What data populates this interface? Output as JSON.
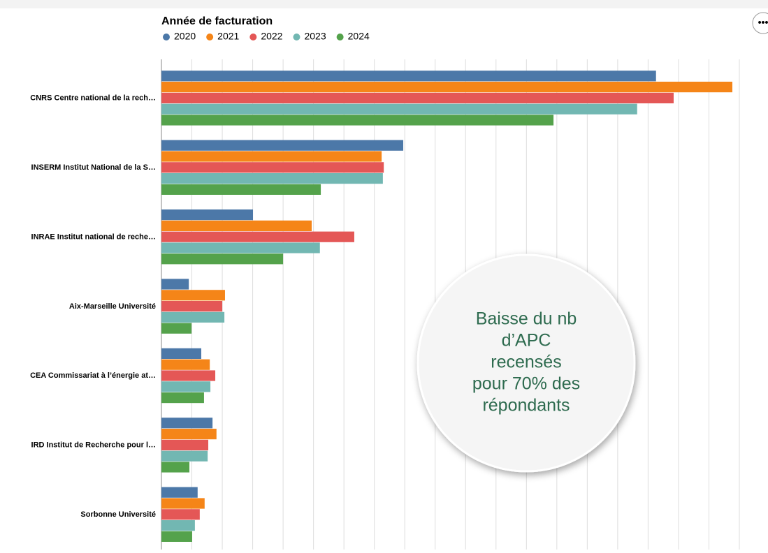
{
  "chart_data": {
    "type": "bar",
    "orientation": "horizontal",
    "legend_title": "Année de facturation",
    "categories": [
      "CNRS Centre national de la rech…",
      "INSERM Institut National de la S…",
      "INRAE Institut national de reche…",
      "Aix-Marseille Université",
      "CEA Commissariat à l’énergie at…",
      "IRD Institut de Recherche pour l…",
      "Sorbonne Université"
    ],
    "series": [
      {
        "name": "2020",
        "color": "#4c78a8",
        "values": [
          16.26,
          7.95,
          3.01,
          0.9,
          1.31,
          1.68,
          1.19
        ]
      },
      {
        "name": "2021",
        "color": "#f58518",
        "values": [
          18.77,
          7.24,
          4.94,
          2.09,
          1.59,
          1.81,
          1.42
        ]
      },
      {
        "name": "2022",
        "color": "#e45756",
        "values": [
          16.84,
          7.31,
          6.34,
          2.0,
          1.77,
          1.54,
          1.26
        ]
      },
      {
        "name": "2023",
        "color": "#72b7b2",
        "values": [
          15.64,
          7.28,
          5.21,
          2.07,
          1.61,
          1.52,
          1.1
        ]
      },
      {
        "name": "2024",
        "color": "#54a24b",
        "values": [
          12.89,
          5.24,
          4.0,
          0.99,
          1.4,
          0.92,
          1.01
        ]
      }
    ],
    "xlim": [
      0,
      19
    ],
    "xticks": [
      0,
      1,
      2,
      3,
      4,
      5,
      6,
      7,
      8,
      9,
      10,
      11,
      12,
      13,
      14,
      15,
      16,
      17,
      18,
      19
    ],
    "grid": true,
    "annotation": [
      "Baisse du nb",
      "d’APC",
      "recensés",
      "pour 70% des",
      "répondants"
    ]
  }
}
